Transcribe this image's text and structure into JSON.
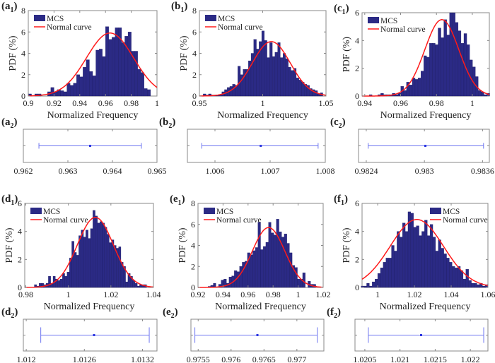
{
  "colors": {
    "bar": "#2b2a85",
    "bar_edge": "#1a1960",
    "curve": "#ff1a1a",
    "errorbar": "#6d75f0",
    "axis": "#888888"
  },
  "chart_data": [
    {
      "id": "a1",
      "type": "bar",
      "panel": "a",
      "sub": "1",
      "xlabel": "Normalized Frequency",
      "ylabel": "PDF (%)",
      "xlim": [
        0.9,
        1.0
      ],
      "ylim": [
        0,
        8
      ],
      "xticks": [
        "0.9",
        "0.92",
        "0.94",
        "0.96",
        "0.98",
        "1"
      ],
      "yticks": [
        "0",
        "2",
        "4",
        "6",
        "8"
      ],
      "legend": {
        "position": "top-left",
        "items": [
          "MCS",
          "Normal curve"
        ]
      },
      "bin_start": 0.9,
      "bin_width": 0.0025,
      "values": [
        0.2,
        0,
        0.2,
        0.2,
        0,
        0,
        0.4,
        0.8,
        0.4,
        0.6,
        0.5,
        0.4,
        1.2,
        1.0,
        1.2,
        2.0,
        1.8,
        2.7,
        3.4,
        2.3,
        1.9,
        4.3,
        4.4,
        3.7,
        6.5,
        5.3,
        5.5,
        6.4,
        6.4,
        5.0,
        5.6,
        6.0,
        4.2,
        4.2,
        2.5,
        2.2,
        0.7,
        0.6
      ],
      "normal": {
        "mean": 0.9635,
        "sd": 0.0183,
        "peak": 5.9
      }
    },
    {
      "id": "b1",
      "type": "bar",
      "panel": "b",
      "sub": "1",
      "xlabel": "Normalized Frequency",
      "ylabel": "PDF (%)",
      "xlim": [
        0.95,
        1.05
      ],
      "ylim": [
        0,
        8
      ],
      "xticks": [
        "0.95",
        "1",
        "1.05"
      ],
      "yticks": [
        "0",
        "2",
        "4",
        "6",
        "8"
      ],
      "legend": {
        "position": "top-left",
        "items": [
          "MCS",
          "Normal curve"
        ]
      },
      "bin_start": 0.953,
      "bin_width": 0.0021,
      "values": [
        0.2,
        0.1,
        0.2,
        0.1,
        0.1,
        0.1,
        0.1,
        0.4,
        0.6,
        0.8,
        0.9,
        1.1,
        1.0,
        2.8,
        2.0,
        2.5,
        2.5,
        3.3,
        4.0,
        5.3,
        4.4,
        5.1,
        6.1,
        5.2,
        3.6,
        5.0,
        3.7,
        4.1,
        5.0,
        3.6,
        4.0,
        3.5,
        2.7,
        2.4,
        2.6,
        1.7,
        1.5,
        1.3,
        1.1,
        1.0,
        0.7,
        0.6,
        0.5,
        0.2,
        0.3
      ],
      "normal": {
        "mean": 1.0068,
        "sd": 0.015,
        "peak": 5.1
      }
    },
    {
      "id": "c1",
      "type": "bar",
      "panel": "c",
      "sub": "1",
      "xlabel": "Normalized Frequency",
      "ylabel": "PDF (%)",
      "xlim": [
        0.9385,
        1.0095
      ],
      "ylim": [
        0,
        6
      ],
      "xticks": [
        "0.94",
        "0.96",
        "0.98",
        "1"
      ],
      "yticks": [
        "0",
        "2",
        "4",
        "6"
      ],
      "legend": {
        "position": "top-left",
        "items": [
          "MCS",
          "Normal curve"
        ]
      },
      "bin_start": 0.9425,
      "bin_width": 0.0016,
      "values": [
        0.1,
        0,
        0,
        0.1,
        0.2,
        0.1,
        0.1,
        0.1,
        0.2,
        0.1,
        0.2,
        0.7,
        0.4,
        1.0,
        0.8,
        1.3,
        1.2,
        1.3,
        1.8,
        2.9,
        2.8,
        3.8,
        3.8,
        3.7,
        4.9,
        4.2,
        5.5,
        4.4,
        6.0,
        6.0,
        5.3,
        4.7,
        3.8,
        4.5,
        3.7,
        2.6,
        2.1,
        1.4,
        0.4,
        0.3,
        0.1,
        0.2
      ],
      "normal": {
        "mean": 0.983,
        "sd": 0.0095,
        "peak": 5.5
      }
    },
    {
      "id": "d1",
      "type": "bar",
      "panel": "d",
      "sub": "1",
      "xlabel": "Normalized Frequency",
      "ylabel": "PDF (%)",
      "xlim": [
        0.9795,
        1.04
      ],
      "ylim": [
        0,
        6
      ],
      "xticks": [
        "0.98",
        "1",
        "1.02",
        "1.04"
      ],
      "yticks": [
        "0",
        "2",
        "4",
        "6"
      ],
      "legend": {
        "position": "top-left",
        "items": [
          "MCS",
          "Normal curve"
        ]
      },
      "bin_start": 0.984,
      "bin_width": 0.0011,
      "values": [
        0.2,
        0.1,
        0.3,
        0.3,
        0.2,
        0.3,
        0.8,
        0.3,
        0.8,
        0.6,
        0.5,
        0.6,
        1.0,
        0.8,
        1.1,
        2.1,
        3.3,
        2.5,
        2.3,
        3.7,
        4.1,
        3.6,
        4.1,
        3.5,
        4.2,
        5.5,
        5.1,
        4.6,
        4.7,
        4.6,
        4.3,
        3.8,
        3.2,
        3.4,
        3.0,
        2.8,
        2.9,
        1.8,
        1.5,
        0.4,
        1.0,
        0.8,
        0.5,
        0.3,
        0.1,
        0.2,
        0.2,
        0.2
      ],
      "normal": {
        "mean": 1.0127,
        "sd": 0.0085,
        "peak": 5.0
      }
    },
    {
      "id": "e1",
      "type": "bar",
      "panel": "e",
      "sub": "1",
      "xlabel": "Normalized Frequency",
      "ylabel": "PDF (%)",
      "xlim": [
        0.92,
        1.02
      ],
      "ylim": [
        0,
        8
      ],
      "xticks": [
        "0.92",
        "0.94",
        "0.96",
        "0.98",
        "1",
        "1.02"
      ],
      "yticks": [
        "0",
        "2",
        "4",
        "6",
        "8"
      ],
      "legend": {
        "position": "top-left",
        "items": [
          "MCS",
          "Normal curve"
        ]
      },
      "bin_start": 0.928,
      "bin_width": 0.0021,
      "values": [
        0.1,
        0.2,
        0.4,
        0,
        0.3,
        0.7,
        0.8,
        0.4,
        1.0,
        1.1,
        1.6,
        1.5,
        2.0,
        2.4,
        2.5,
        3.3,
        3.1,
        3.5,
        3.8,
        6.2,
        3.6,
        3.9,
        4.3,
        6.2,
        5.2,
        5.0,
        6.5,
        5.3,
        4.8,
        5.1,
        4.2,
        3.3,
        2.1,
        1.9,
        0.8,
        0.8,
        1.4,
        0,
        0.6,
        0.3,
        0.3
      ],
      "normal": {
        "mean": 0.9764,
        "sd": 0.013,
        "peak": 5.7
      }
    },
    {
      "id": "f1",
      "type": "bar",
      "panel": "f",
      "sub": "1",
      "xlabel": "Normalized Frequency",
      "ylabel": "PDF (%)",
      "xlim": [
        0.9915,
        1.06
      ],
      "ylim": [
        0,
        6
      ],
      "xticks": [
        "1",
        "1.02",
        "1.04",
        "1.06"
      ],
      "yticks": [
        "0",
        "2",
        "4",
        "6"
      ],
      "legend": {
        "position": "top-right",
        "items": [
          "MCS",
          "Normal curve"
        ]
      },
      "bin_start": 0.991,
      "bin_width": 0.0015,
      "values": [
        0.1,
        0.1,
        0.3,
        0.1,
        0.4,
        0.6,
        1.0,
        1.4,
        1.8,
        2.1,
        2.1,
        3.0,
        2.6,
        4.0,
        3.6,
        4.6,
        4.0,
        5.4,
        5.3,
        4.3,
        4.4,
        3.7,
        4.0,
        4.8,
        3.7,
        4.5,
        3.6,
        2.6,
        3.4,
        2.8,
        2.4,
        2.1,
        1.8,
        1.5,
        1.4,
        1.5,
        1.2,
        0.6,
        1.3,
        0.5,
        0.3,
        0.3,
        0.2,
        0.3,
        0.1,
        0.2
      ],
      "normal": {
        "mean": 1.0213,
        "sd": 0.0145,
        "peak": 4.85
      }
    },
    {
      "id": "a2",
      "type": "errorbar",
      "panel": "a",
      "sub": "2",
      "xlim": [
        0.962,
        0.965
      ],
      "xticks": [
        "0.962",
        "0.963",
        "0.964",
        "0.965"
      ],
      "low": 0.96235,
      "center": 0.9635,
      "high": 0.96465
    },
    {
      "id": "b2",
      "type": "errorbar",
      "panel": "b",
      "sub": "2",
      "xlim": [
        1.0055,
        1.008
      ],
      "xticks": [
        "1.006",
        "1.007",
        "1.008"
      ],
      "low": 1.00576,
      "center": 1.00683,
      "high": 1.00787
    },
    {
      "id": "c2",
      "type": "errorbar",
      "panel": "c",
      "sub": "2",
      "xlim": [
        0.98232,
        0.98367
      ],
      "xticks": [
        "0.9824",
        "0.983",
        "0.9836"
      ],
      "low": 0.98242,
      "center": 0.98301,
      "high": 0.98361
    },
    {
      "id": "d2",
      "type": "errorbar",
      "panel": "d",
      "sub": "2",
      "xlim": [
        1.01197,
        1.01335
      ],
      "xticks": [
        "1.012",
        "1.0126",
        "1.0132"
      ],
      "low": 1.01215,
      "center": 1.0127,
      "high": 1.01327
    },
    {
      "id": "e2",
      "type": "errorbar",
      "panel": "e",
      "sub": "2",
      "xlim": [
        0.97539,
        0.97741
      ],
      "xticks": [
        "0.9755",
        "0.976",
        "0.9765",
        "0.977"
      ],
      "low": 0.97545,
      "center": 0.9764,
      "high": 0.97731
    },
    {
      "id": "f2",
      "type": "errorbar",
      "panel": "f",
      "sub": "2",
      "xlim": [
        1.02036,
        1.02225
      ],
      "xticks": [
        "1.0205",
        "1.021",
        "1.0215",
        "1.022"
      ],
      "low": 1.02055,
      "center": 1.0213,
      "high": 1.02219
    }
  ]
}
